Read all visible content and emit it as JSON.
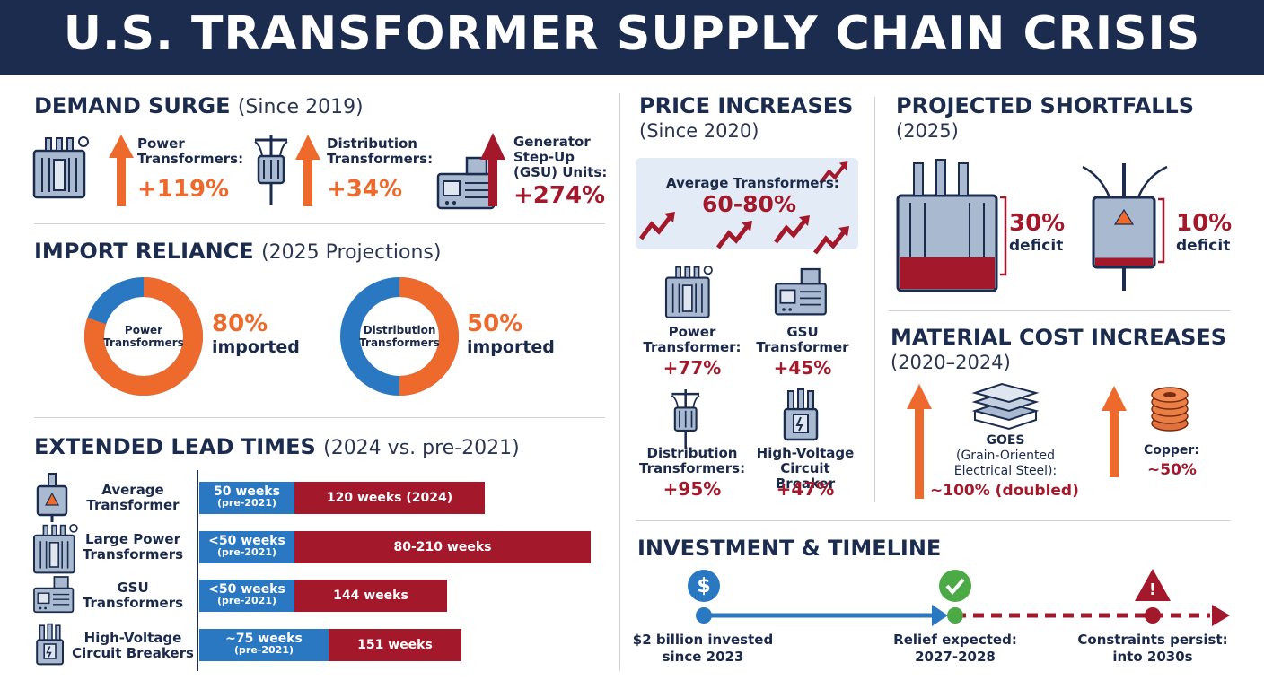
{
  "title": "U.S. TRANSFORMER SUPPLY CHAIN CRISIS",
  "demand": {
    "heading": "DEMAND SURGE",
    "sub": "(Since 2019)",
    "items": [
      {
        "label_l1": "Power",
        "label_l2": "Transformers:",
        "label_l3": "",
        "value": "+119%"
      },
      {
        "label_l1": "Distribution",
        "label_l2": "Transformers:",
        "label_l3": "",
        "value": "+34%"
      },
      {
        "label_l1": "Generator",
        "label_l2": "Step-Up",
        "label_l3": "(GSU) Units:",
        "value": "+274%"
      }
    ]
  },
  "imports": {
    "heading": "IMPORT RELIANCE",
    "sub": "(2025 Projections)",
    "items": [
      {
        "center_l1": "Power",
        "center_l2": "Transformers",
        "pct": "80%",
        "label": "imported",
        "share": 0.8
      },
      {
        "center_l1": "Distribution",
        "center_l2": "Transformers",
        "pct": "50%",
        "label": "imported",
        "share": 0.5
      }
    ]
  },
  "lead": {
    "heading": "EXTENDED LEAD TIMES",
    "sub": "(2024 vs. pre-2021)",
    "rows": [
      {
        "l1": "Average",
        "l2": "Transformer",
        "pre": "50 weeks",
        "pre_sub": "(pre-2021)",
        "now": "120 weeks (2024)"
      },
      {
        "l1": "Large Power",
        "l2": "Transformers",
        "pre": "<50 weeks",
        "pre_sub": "(pre-2021)",
        "now": "80-210 weeks"
      },
      {
        "l1": "GSU",
        "l2": "Transformers",
        "pre": "<50 weeks",
        "pre_sub": "(pre-2021)",
        "now": "144 weeks"
      },
      {
        "l1": "High-Voltage",
        "l2": "Circuit Breakers",
        "pre": "~75 weeks",
        "pre_sub": "(pre-2021)",
        "now": "151 weeks"
      }
    ]
  },
  "price": {
    "heading": "PRICE INCREASES",
    "sub": "(Since 2020)",
    "avg_label": "Average Transformers:",
    "avg_value": "60-80%",
    "items": [
      {
        "l1": "Power",
        "l2": "Transformer:",
        "value": "+77%"
      },
      {
        "l1": "GSU",
        "l2": "Transformer",
        "value": "+45%"
      },
      {
        "l1": "Distribution",
        "l2": "Transformers:",
        "value": "+95%"
      },
      {
        "l1": "High-Voltage",
        "l2": "Circuit Breaker",
        "value": "+47%"
      }
    ]
  },
  "shortfalls": {
    "heading": "PROJECTED SHORTFALLS",
    "sub": "(2025)",
    "items": [
      {
        "pct": "30%",
        "label": "deficit",
        "share": 0.3
      },
      {
        "pct": "10%",
        "label": "deficit",
        "share": 0.1
      }
    ]
  },
  "material": {
    "heading": "MATERIAL COST INCREASES",
    "sub": "(2020–2024)",
    "goes_l1": "GOES",
    "goes_l2": "(Grain-Oriented",
    "goes_l3": "Electrical Steel):",
    "goes_value": "~100% (doubled)",
    "copper_label": "Copper:",
    "copper_value": "~50%"
  },
  "timeline": {
    "heading": "INVESTMENT & TIMELINE",
    "points": [
      {
        "l1": "$2 billion invested",
        "l2": "since 2023"
      },
      {
        "l1": "Relief expected:",
        "l2": "2027-2028"
      },
      {
        "l1": "Constraints persist:",
        "l2": "into 2030s"
      }
    ],
    "dollar_symbol": "$",
    "warn_symbol": "!"
  },
  "colors": {
    "navy": "#1b2c4f",
    "orange": "#ee6a2c",
    "red": "#a3192b",
    "blue": "#2a78c2",
    "green": "#4caa46",
    "steel": "#a9bad0"
  }
}
